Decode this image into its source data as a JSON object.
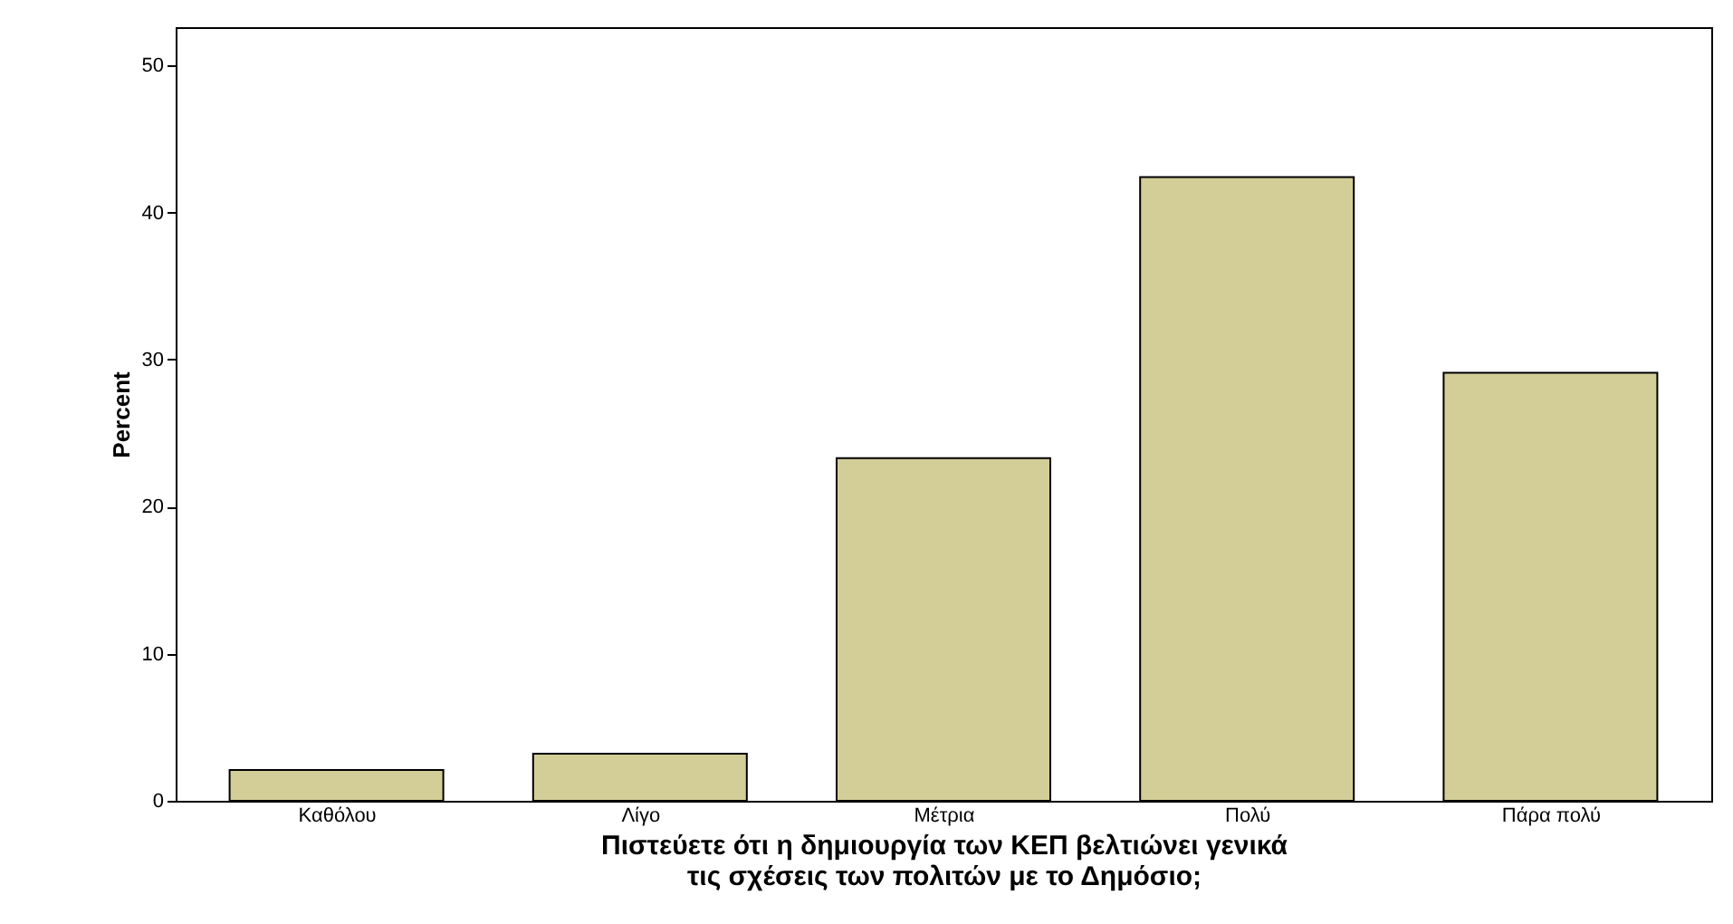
{
  "chart_data": {
    "type": "bar",
    "categories": [
      "Καθόλου",
      "Λίγο",
      "Μέτρια",
      "Πολύ",
      "Πάρα πολύ"
    ],
    "values": [
      2.1,
      3.2,
      23.3,
      42.4,
      29.1
    ],
    "color": "#d3ce98",
    "xlabel": "Πιστεύετε ότι η δημιουργία των ΚΕΠ βελτιώνει γενικά τις σχέσεις των πολιτών με το Δημόσιο;",
    "ylabel": "Percent",
    "ylim": [
      0,
      52.6
    ],
    "yticks": [
      0,
      10,
      20,
      30,
      40,
      50
    ],
    "grid": false
  }
}
